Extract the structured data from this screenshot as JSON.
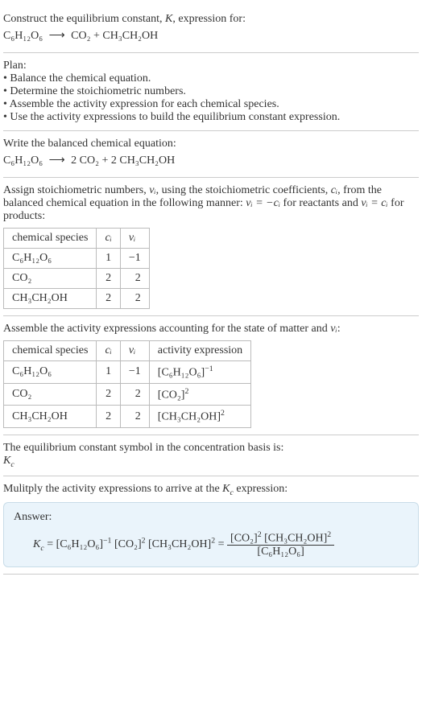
{
  "section1": {
    "line1": "Construct the equilibrium constant, ",
    "line1_italic": "K",
    "line1_end": ", expression for:",
    "eq_lhs": "C₆H₁₂O₆",
    "eq_arrow": "⟶",
    "eq_rhs": "CO₂ + CH₃CH₂OH"
  },
  "section2": {
    "heading": "Plan:",
    "items": [
      "Balance the chemical equation.",
      "Determine the stoichiometric numbers.",
      "Assemble the activity expression for each chemical species.",
      "Use the activity expressions to build the equilibrium constant expression."
    ]
  },
  "section3": {
    "heading": "Write the balanced chemical equation:",
    "eq_lhs": "C₆H₁₂O₆",
    "eq_arrow": "⟶",
    "eq_rhs": "2 CO₂ + 2 CH₃CH₂OH"
  },
  "section4": {
    "text_parts": [
      "Assign stoichiometric numbers, ",
      "νᵢ",
      ", using the stoichiometric coefficients, ",
      "cᵢ",
      ", from the balanced chemical equation in the following manner: ",
      "νᵢ = −cᵢ",
      " for reactants and ",
      "νᵢ = cᵢ",
      " for products:"
    ],
    "table": {
      "headers": [
        "chemical species",
        "cᵢ",
        "νᵢ"
      ],
      "rows": [
        [
          "C₆H₁₂O₆",
          "1",
          "−1"
        ],
        [
          "CO₂",
          "2",
          "2"
        ],
        [
          "CH₃CH₂OH",
          "2",
          "2"
        ]
      ]
    }
  },
  "section5": {
    "heading_a": "Assemble the activity expressions accounting for the state of matter and ",
    "heading_b": "νᵢ",
    "heading_c": ":",
    "table": {
      "headers": [
        "chemical species",
        "cᵢ",
        "νᵢ",
        "activity expression"
      ],
      "rows": [
        {
          "species": "C₆H₁₂O₆",
          "c": "1",
          "v": "−1",
          "expr_base": "[C₆H₁₂O₆]",
          "expr_sup": "−1"
        },
        {
          "species": "CO₂",
          "c": "2",
          "v": "2",
          "expr_base": "[CO₂]",
          "expr_sup": "2"
        },
        {
          "species": "CH₃CH₂OH",
          "c": "2",
          "v": "2",
          "expr_base": "[CH₃CH₂OH]",
          "expr_sup": "2"
        }
      ]
    }
  },
  "section6": {
    "heading": "The equilibrium constant symbol in the concentration basis is:",
    "symbol": "K",
    "symbol_sub": "c"
  },
  "section7": {
    "heading_a": "Mulitply the activity expressions to arrive at the ",
    "heading_k": "K",
    "heading_sub": "c",
    "heading_b": " expression:",
    "answer_label": "Answer:",
    "kc": "K",
    "kc_sub": "c",
    "eq": " = ",
    "term1_base": "[C₆H₁₂O₆]",
    "term1_sup": "−1",
    "term2_base": "[CO₂]",
    "term2_sup": "2",
    "term3_base": "[CH₃CH₂OH]",
    "term3_sup": "2",
    "eq2": " = ",
    "num1_base": "[CO₂]",
    "num1_sup": "2",
    "num2_base": "[CH₃CH₂OH]",
    "num2_sup": "2",
    "den_base": "[C₆H₁₂O₆]"
  }
}
